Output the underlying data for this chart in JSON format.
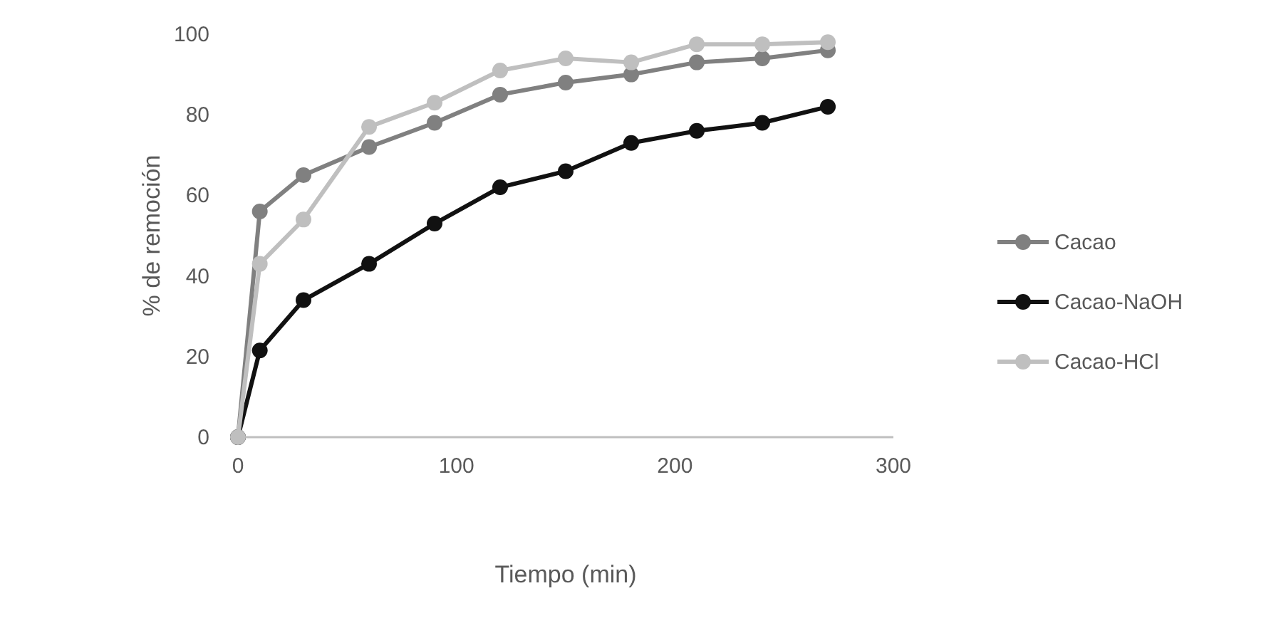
{
  "chart_data": {
    "type": "line",
    "xlabel": "Tiempo (min)",
    "ylabel": "% de remoción",
    "x": [
      0,
      10,
      30,
      60,
      90,
      120,
      150,
      180,
      210,
      240,
      270
    ],
    "xlim": [
      0,
      300
    ],
    "xticks": [
      0,
      100,
      200,
      300
    ],
    "ylim": [
      0,
      100
    ],
    "yticks": [
      0,
      20,
      40,
      60,
      80,
      100
    ],
    "grid": false,
    "legend": "right",
    "marker": "circle",
    "line_style": "solid",
    "series": [
      {
        "name": "Cacao",
        "color": "#808080",
        "values": [
          0,
          56,
          65,
          72,
          78,
          85,
          88,
          90,
          93,
          94,
          96
        ]
      },
      {
        "name": "Cacao-NaOH",
        "color": "#111111",
        "values": [
          0,
          21.5,
          34,
          43,
          53,
          62,
          66,
          73,
          76,
          78,
          82
        ]
      },
      {
        "name": "Cacao-HCl",
        "color": "#bfbfbf",
        "values": [
          0,
          43,
          54,
          77,
          83,
          91,
          94,
          93,
          97.5,
          97.5,
          98
        ]
      }
    ]
  }
}
